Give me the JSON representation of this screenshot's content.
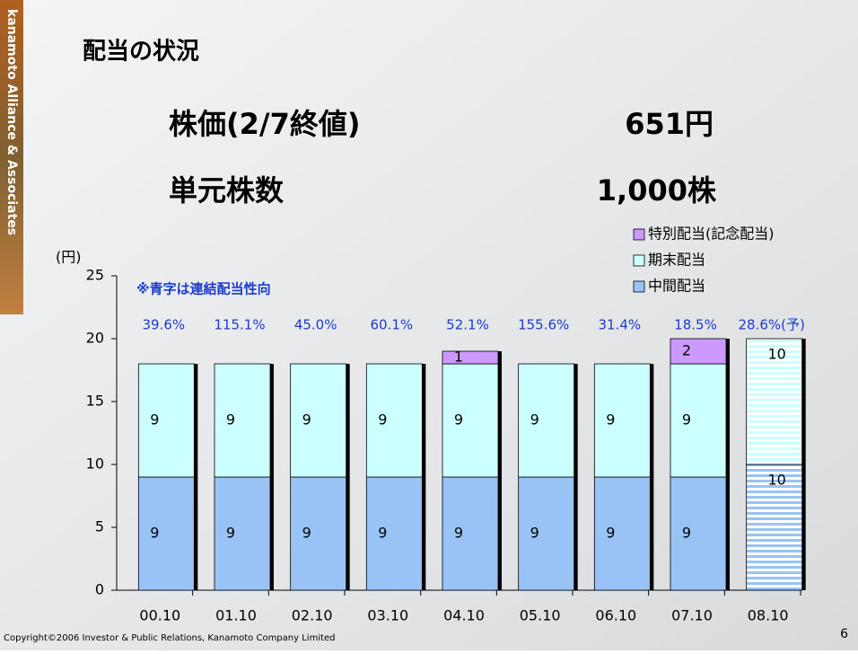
{
  "slide": {
    "title": "配当の状況",
    "stock_label": "株価(2/7終値)",
    "stock_value": "651円",
    "unit_label": "単元株数",
    "unit_value": "1,000株",
    "side_logo": "kanamoto Alliance & Associates",
    "copyright": "Copyright©2006 Investor & Public Relations, Kanamoto Company Limited",
    "page": "6"
  },
  "chart_data": {
    "type": "bar",
    "stacked": true,
    "y_label": "(円)",
    "note": "※青字は連結配当性向",
    "categories": [
      "00.10",
      "01.10",
      "02.10",
      "03.10",
      "04.10",
      "05.10",
      "06.10",
      "07.10",
      "08.10"
    ],
    "series": [
      {
        "name": "中間配当",
        "color": "#99c3f5",
        "values": [
          9,
          9,
          9,
          9,
          9,
          9,
          9,
          9,
          10
        ]
      },
      {
        "name": "期末配当",
        "color": "#ccffff",
        "values": [
          9,
          9,
          9,
          9,
          9,
          9,
          9,
          9,
          10
        ]
      },
      {
        "name": "特別配当(記念配当)",
        "color": "#cc99ff",
        "values": [
          null,
          null,
          null,
          null,
          1,
          null,
          null,
          2,
          null
        ]
      }
    ],
    "payout_labels": [
      "39.6%",
      "115.1%",
      "45.0%",
      "60.1%",
      "52.1%",
      "155.6%",
      "31.4%",
      "18.5%",
      "28.6%(予)"
    ],
    "forecast_index": 8,
    "ylim": [
      0,
      25
    ],
    "yticks": [
      0,
      5,
      10,
      15,
      20,
      25
    ]
  }
}
